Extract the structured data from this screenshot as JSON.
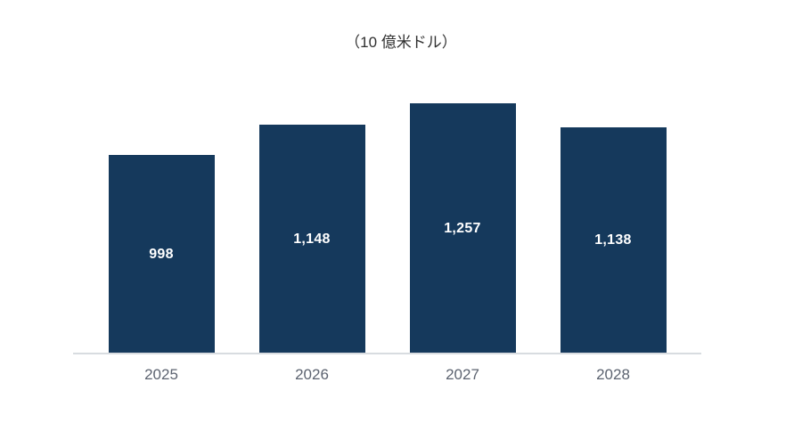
{
  "chart_data": {
    "type": "bar",
    "title": "（10 億米ドル）",
    "categories": [
      "2025",
      "2026",
      "2027",
      "2028"
    ],
    "values": [
      998,
      1148,
      1257,
      1138
    ],
    "value_labels": [
      "998",
      "1,148",
      "1,257",
      "1,138"
    ],
    "xlabel": "",
    "ylabel": "",
    "ylim": [
      0,
      1400
    ],
    "grid": false,
    "legend": false,
    "value_label_position": "inside-center",
    "colors": {
      "bar": "#15395C",
      "value_label": "#ffffff",
      "axis_tick_label": "#5C6370",
      "axis_line": "#D8DCE0",
      "title": "#303030",
      "background": "#ffffff"
    }
  }
}
